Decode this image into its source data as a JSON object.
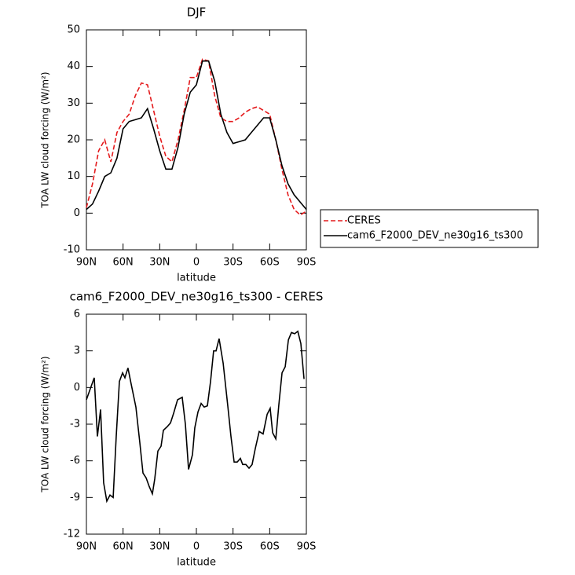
{
  "chart_data": [
    {
      "type": "line",
      "title": "DJF",
      "xlabel": "latitude",
      "ylabel": "TOA LW cloud forcing (W/m²)",
      "x": [
        90,
        85,
        80,
        75,
        70,
        65,
        60,
        55,
        50,
        45,
        40,
        35,
        30,
        25,
        20,
        15,
        10,
        5,
        0,
        -5,
        -10,
        -15,
        -20,
        -25,
        -30,
        -35,
        -40,
        -45,
        -50,
        -55,
        -60,
        -65,
        -70,
        -75,
        -80,
        -85,
        -90
      ],
      "series": [
        {
          "name": "CERES",
          "color": "#e41a1c",
          "style": "dashed",
          "values": [
            1.5,
            8,
            17,
            20,
            14,
            22,
            25,
            27,
            32,
            35.5,
            35,
            28,
            21,
            15.5,
            14,
            20,
            28,
            37,
            37,
            42,
            41.5,
            32,
            26,
            25,
            25,
            26,
            27.5,
            28.5,
            29,
            28,
            27,
            20,
            12,
            5,
            1,
            -0.5,
            0.5
          ]
        },
        {
          "name": "cam6_F2000_DEV_ne30g16_ts300",
          "color": "#000000",
          "style": "solid",
          "values": [
            1,
            2.5,
            6,
            10,
            11,
            15,
            23,
            25,
            25.5,
            26,
            28.5,
            23,
            17,
            12,
            12,
            18,
            27,
            33,
            35,
            41.5,
            41.5,
            36,
            27,
            22,
            19,
            19.5,
            20,
            22,
            24,
            26,
            26,
            20,
            13,
            8,
            5,
            3,
            1
          ]
        }
      ],
      "xlim": [
        90,
        -90
      ],
      "xticks": [
        {
          "value": 90,
          "label": "90N"
        },
        {
          "value": 60,
          "label": "60N"
        },
        {
          "value": 30,
          "label": "30N"
        },
        0,
        {
          "value": -30,
          "label": "30S"
        },
        {
          "value": -60,
          "label": "60S"
        },
        {
          "value": -90,
          "label": "90S"
        }
      ],
      "ylim": [
        -10,
        50
      ],
      "yticks": [
        -10,
        0,
        10,
        20,
        30,
        40,
        50
      ],
      "legend": "outside-right"
    },
    {
      "type": "line",
      "title": "cam6_F2000_DEV_ne30g16_ts300 - CERES",
      "xlabel": "latitude",
      "ylabel": "TOA LW cloud forcing (W/m²)",
      "x": [
        90,
        83.6,
        81,
        78.4,
        75.9,
        73.3,
        70.7,
        68.1,
        65.6,
        63,
        60.4,
        58.5,
        56,
        53.4,
        49.5,
        46.3,
        43.7,
        41.1,
        38.6,
        36,
        34.1,
        31.5,
        28.9,
        27,
        23.8,
        21.2,
        18.6,
        15.4,
        11.6,
        9,
        6.4,
        3.2,
        1.3,
        -1.3,
        -3.9,
        -6.4,
        -9,
        -11.6,
        -14.1,
        -16.1,
        -18.6,
        -21.9,
        -25.7,
        -28.3,
        -30.9,
        -33.4,
        -36,
        -37.9,
        -40.5,
        -43.1,
        -45.6,
        -48.2,
        -51.4,
        -54.6,
        -57.9,
        -60.4,
        -62.4,
        -65,
        -67.5,
        -70.1,
        -72.7,
        -75.3,
        -77.8,
        -80.4,
        -83,
        -85.5,
        -88.1
      ],
      "series": [
        {
          "color": "#000000",
          "style": "solid",
          "values": [
            -1,
            0.8,
            -4,
            -1.8,
            -7.8,
            -9.3,
            -8.8,
            -9,
            -4,
            0.5,
            1.2,
            0.8,
            1.6,
            0.3,
            -1.6,
            -4.5,
            -7,
            -7.4,
            -8.1,
            -8.7,
            -7.5,
            -5.2,
            -4.8,
            -3.5,
            -3.2,
            -2.9,
            -2.1,
            -1,
            -0.8,
            -3,
            -6.7,
            -5.5,
            -3.3,
            -2,
            -1.3,
            -1.6,
            -1.5,
            0.5,
            3,
            3,
            4,
            2,
            -1.5,
            -4,
            -6.1,
            -6.1,
            -5.8,
            -6.3,
            -6.3,
            -6.6,
            -6.3,
            -5,
            -3.6,
            -3.8,
            -2.2,
            -1.7,
            -3.7,
            -4.2,
            -1.4,
            1.2,
            1.7,
            3.9,
            4.5,
            4.4,
            4.6,
            3.6,
            0.7
          ]
        }
      ],
      "xlim": [
        90,
        -90
      ],
      "xticks": [
        {
          "value": 90,
          "label": "90N"
        },
        {
          "value": 60,
          "label": "60N"
        },
        {
          "value": 30,
          "label": "30N"
        },
        0,
        {
          "value": -30,
          "label": "30S"
        },
        {
          "value": -60,
          "label": "60S"
        },
        {
          "value": -90,
          "label": "90S"
        }
      ],
      "ylim": [
        -12,
        6
      ],
      "yticks": [
        -12,
        -9,
        -6,
        -3,
        0,
        3,
        6
      ]
    }
  ]
}
